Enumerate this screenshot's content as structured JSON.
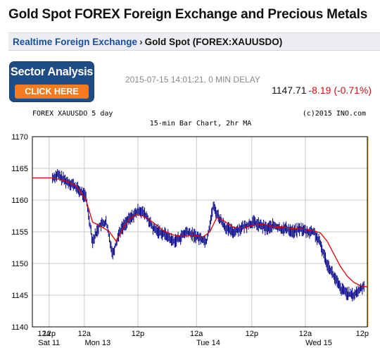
{
  "header": {
    "title": "Gold Spot FOREX Foreign Exchange and Precious Metals"
  },
  "breadcrumb": {
    "parent": "Realtime Foreign Exchange",
    "separator": "›",
    "current": "Gold Spot (FOREX:XAUUSDO)"
  },
  "promo": {
    "title": "Sector Analysis",
    "cta": "CLICK HERE"
  },
  "quote": {
    "timestamp": "2015-07-15 14:01:21, 0 MIN DELAY",
    "price": "1147.71",
    "change": "-8.19 (-0.71%)",
    "change_color": "#cc1111"
  },
  "chart_header": {
    "symbol_range": "FOREX XAUUSDO 5 day",
    "copyright": "(c)2015 INO.com",
    "subtitle": "15-min Bar Chart, 2hr MA"
  },
  "chart_data": {
    "type": "line",
    "ylim": [
      1140,
      1170
    ],
    "yticks": [
      "1170",
      "1165",
      "1160",
      "1155",
      "1150",
      "1145",
      "1140"
    ],
    "x_labels_top": [
      "12a",
      "12p",
      "12a",
      "12p",
      "12a",
      "12p",
      "12a",
      "12p"
    ],
    "x_labels_bottom": [
      "Sat 11",
      "Mon 13",
      "Tue 14",
      "Wed 15"
    ],
    "series": [
      {
        "color": "#000088",
        "x": [
          0,
          0.06,
          0.075,
          0.1,
          0.12,
          0.14,
          0.16,
          0.18,
          0.2,
          0.22,
          0.24,
          0.26,
          0.28,
          0.3,
          0.32,
          0.34,
          0.36,
          0.38,
          0.4,
          0.42,
          0.44,
          0.46,
          0.48,
          0.5,
          0.52,
          0.54,
          0.56,
          0.58,
          0.6,
          0.62,
          0.64,
          0.66,
          0.68,
          0.7,
          0.72,
          0.74,
          0.76,
          0.78,
          0.8,
          0.82,
          0.84,
          0.86,
          0.88,
          0.9,
          0.92,
          0.935,
          0.95,
          0.96,
          0.97,
          0.98,
          0.99
        ],
        "values": [
          1163.5,
          1163.5,
          1164,
          1163,
          1162.5,
          1161.5,
          1160.5,
          1153.5,
          1156,
          1156.5,
          1151.5,
          1155,
          1156.5,
          1157.5,
          1158.5,
          1157.5,
          1155.5,
          1155,
          1154.5,
          1153.5,
          1154,
          1155,
          1154.5,
          1154,
          1153.5,
          1159,
          1157,
          1155.5,
          1155,
          1155.5,
          1156,
          1156.5,
          1156,
          1155.5,
          1156,
          1155.5,
          1155.5,
          1155,
          1155.5,
          1155,
          1155,
          1153,
          1150,
          1148,
          1146,
          1145.5,
          1145,
          1145,
          1145.5,
          1146,
          1146.5
        ]
      },
      {
        "color": "#dd0000",
        "x": [
          0,
          0.06,
          0.1,
          0.13,
          0.16,
          0.18,
          0.2,
          0.23,
          0.25,
          0.27,
          0.29,
          0.31,
          0.33,
          0.36,
          0.39,
          0.42,
          0.45,
          0.48,
          0.51,
          0.53,
          0.55,
          0.57,
          0.6,
          0.63,
          0.66,
          0.69,
          0.72,
          0.75,
          0.78,
          0.81,
          0.84,
          0.86,
          0.88,
          0.9,
          0.92,
          0.94,
          0.96,
          0.98,
          1.0
        ],
        "values": [
          1163.5,
          1163.5,
          1163,
          1162.3,
          1160,
          1156.5,
          1156,
          1155,
          1153.5,
          1155.5,
          1157,
          1157.7,
          1157.5,
          1156.5,
          1155.2,
          1154.5,
          1154.3,
          1154.5,
          1154.2,
          1155,
          1157.2,
          1156.8,
          1155.7,
          1155.6,
          1156,
          1156.2,
          1155.8,
          1155.7,
          1155.5,
          1155.4,
          1155.2,
          1154.8,
          1153.5,
          1151.5,
          1149.5,
          1148,
          1147,
          1146.5,
          1146.3
        ]
      }
    ]
  }
}
